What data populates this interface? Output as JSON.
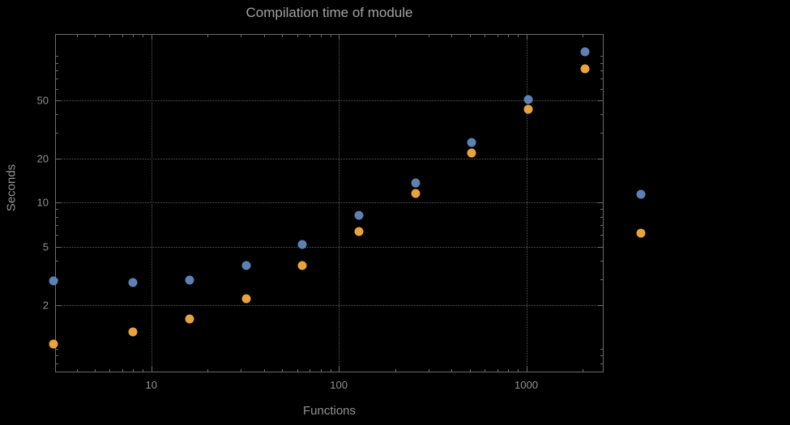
{
  "chart_data": {
    "type": "scatter",
    "title": "Compilation time of module",
    "xlabel": "Functions",
    "ylabel": "Seconds",
    "x_scale": "log",
    "y_scale": "log",
    "x_range": [
      3.1,
      2560
    ],
    "y_range": [
      0.7,
      140
    ],
    "x_ticks": [
      10,
      100,
      1000
    ],
    "y_ticks": [
      2,
      5,
      10,
      20,
      50
    ],
    "grid": "dotted",
    "legend": "none",
    "series": [
      {
        "color": "#5e81b5",
        "points": [
          [
            3,
            2.9
          ],
          [
            8,
            2.85
          ],
          [
            16,
            2.95
          ],
          [
            32,
            3.7
          ],
          [
            64,
            5.2
          ],
          [
            128,
            8.2
          ],
          [
            256,
            13.6
          ],
          [
            512,
            25.6
          ],
          [
            1024,
            50.8
          ],
          [
            2048,
            107
          ],
          [
            4096,
            11.4
          ]
        ]
      },
      {
        "color": "#e8a33d",
        "points": [
          [
            3,
            1.08
          ],
          [
            8,
            1.3
          ],
          [
            16,
            1.6
          ],
          [
            32,
            2.2
          ],
          [
            64,
            3.7
          ],
          [
            128,
            6.3
          ],
          [
            256,
            11.5
          ],
          [
            512,
            21.7
          ],
          [
            1024,
            43.6
          ],
          [
            2048,
            82
          ],
          [
            4096,
            6.2
          ]
        ]
      }
    ],
    "colors": {
      "background": "#000000",
      "title": "#a3a3a3",
      "text": "#929292",
      "frame": "#6b6b6b",
      "grid": "#5a5a5a"
    }
  }
}
